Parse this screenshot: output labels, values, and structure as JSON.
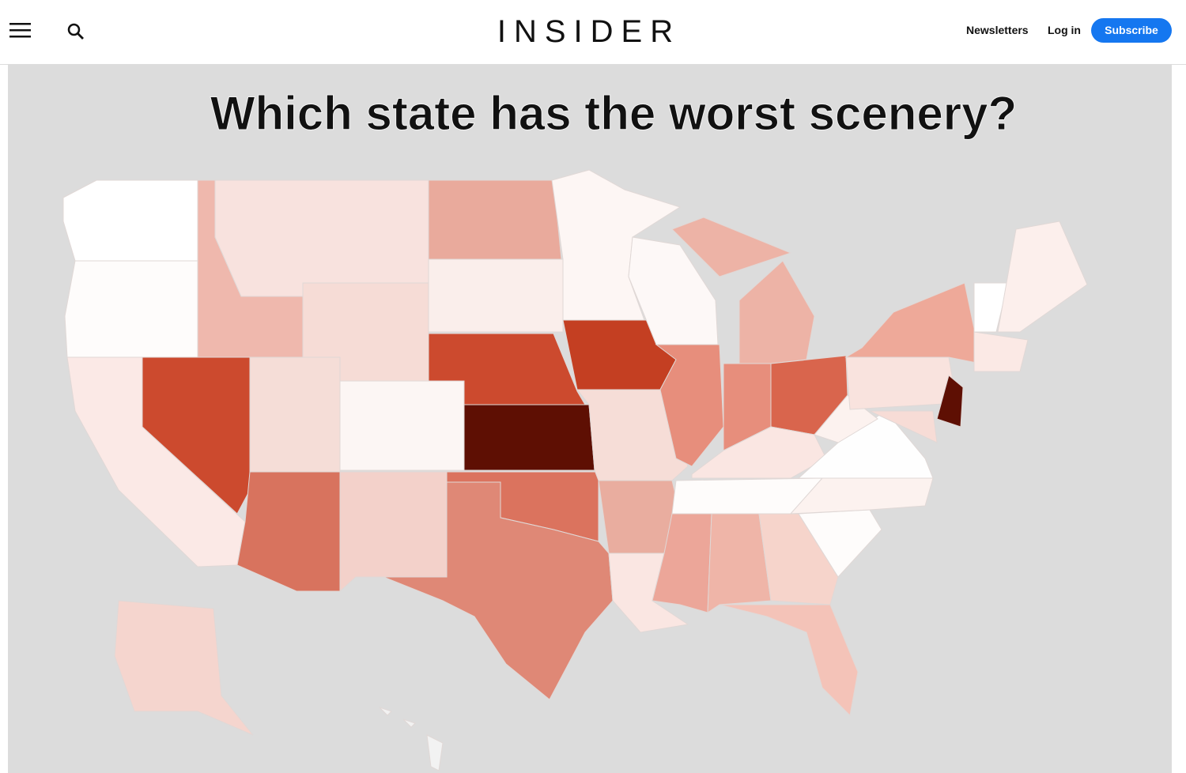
{
  "header": {
    "logo": "INSIDER",
    "nav": [
      "Newsletters",
      "Log in"
    ],
    "subscribe": "Subscribe"
  },
  "figure": {
    "title": "Which state has the worst scenery?"
  }
}
